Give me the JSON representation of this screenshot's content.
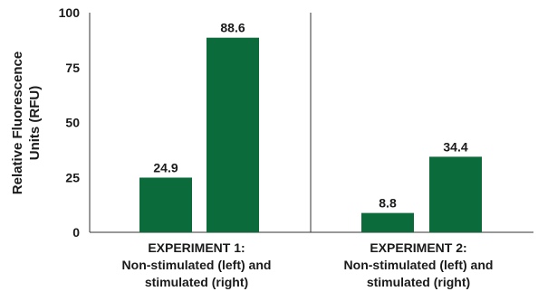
{
  "chart_data": {
    "type": "bar",
    "title": "",
    "xlabel": "",
    "ylabel": "Relative Fluorescence Units (RFU)",
    "ylabel_lines": [
      "Relative Fluorescence",
      "Units (RFU)"
    ],
    "ylim": [
      0,
      100
    ],
    "yticks": [
      0,
      25,
      50,
      75,
      100
    ],
    "grid": false,
    "legend": "none",
    "bar_color": "#0b6b3a",
    "groups": [
      {
        "label_lines": [
          "EXPERIMENT 1:",
          "Non-stimulated (left) and",
          "stimulated (right)"
        ],
        "bars": [
          {
            "condition": "non-stimulated",
            "value": 24.9,
            "label": "24.9"
          },
          {
            "condition": "stimulated",
            "value": 88.6,
            "label": "88.6"
          }
        ]
      },
      {
        "label_lines": [
          "EXPERIMENT 2:",
          "Non-stimulated (left) and",
          "stimulated (right)"
        ],
        "bars": [
          {
            "condition": "non-stimulated",
            "value": 8.8,
            "label": "8.8"
          },
          {
            "condition": "stimulated",
            "value": 34.4,
            "label": "34.4"
          }
        ]
      }
    ]
  }
}
